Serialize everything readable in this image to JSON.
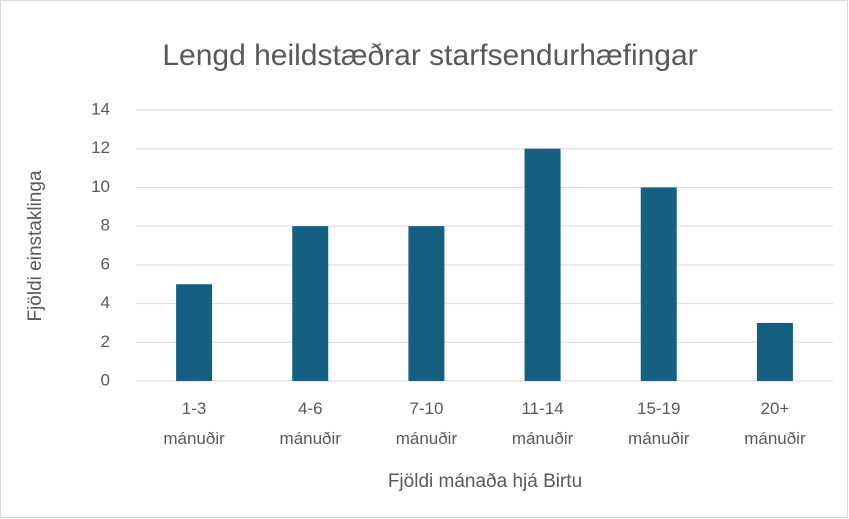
{
  "chart_data": {
    "type": "bar",
    "title": "Lengd heildstæðrar starfsendurhæfingar",
    "x_label": "Fjöldi mánaða hjá Birtu",
    "y_label": "Fjöldi einstaklinga",
    "categories": [
      "1-3 mánuðir",
      "4-6 mánuðir",
      "7-10 mánuðir",
      "11-14 mánuðir",
      "15-19 mánuðir",
      "20+ mánuðir"
    ],
    "values": [
      5,
      8,
      8,
      12,
      10,
      3
    ],
    "color": "#156082",
    "ylim": [
      0,
      14
    ],
    "yticks": [
      0,
      2,
      4,
      6,
      8,
      10,
      12,
      14
    ],
    "grid": true
  }
}
